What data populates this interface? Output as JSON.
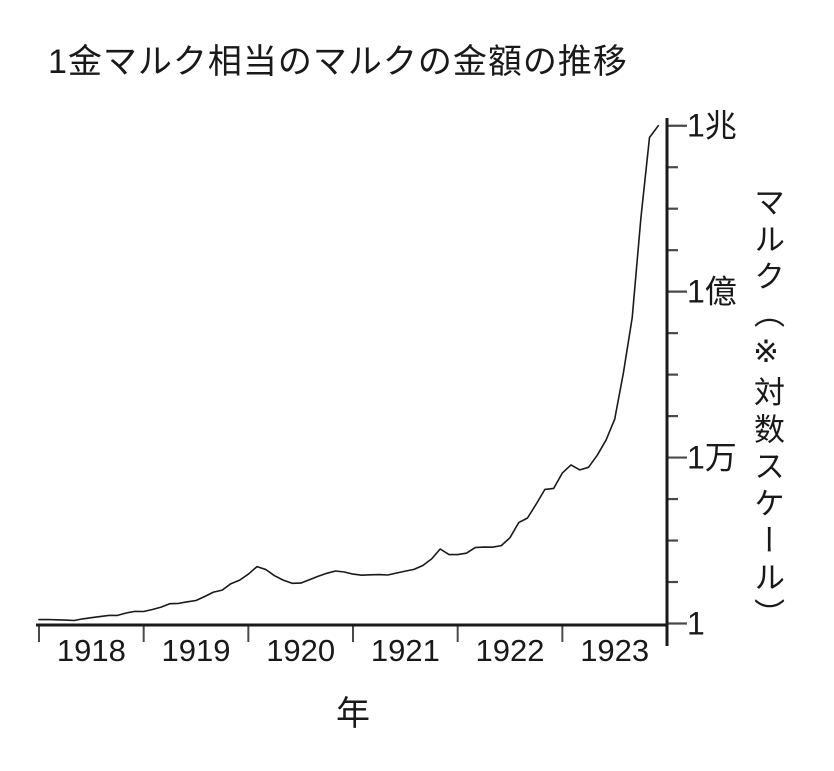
{
  "chart_data": {
    "type": "line",
    "title": "1金マルク相当のマルクの金額の推移",
    "xlabel": "年",
    "ylabel": "マルク（※対数スケール）",
    "y_scale": "log10",
    "y_range": [
      1,
      1000000000000
    ],
    "x_range": [
      1918,
      1924
    ],
    "grid": false,
    "legend": null,
    "x_tick_labels": [
      "1918",
      "1919",
      "1920",
      "1921",
      "1922",
      "1923"
    ],
    "y_tick_labels": [
      {
        "value": 1,
        "label": "1"
      },
      {
        "value": 10000,
        "label": "1万"
      },
      {
        "value": 100000000,
        "label": "1億"
      },
      {
        "value": 1000000000000,
        "label": "1兆"
      }
    ],
    "y_minor_ticks_every_decade": true,
    "series": [
      {
        "x": [
          1918.0,
          1918.083,
          1918.167,
          1918.25,
          1918.333,
          1918.417,
          1918.5,
          1918.583,
          1918.667,
          1918.75,
          1918.833,
          1918.917,
          1919.0,
          1919.083,
          1919.167,
          1919.25,
          1919.333,
          1919.417,
          1919.5,
          1919.583,
          1919.667,
          1919.75,
          1919.833,
          1919.917,
          1920.0,
          1920.083,
          1920.167,
          1920.25,
          1920.333,
          1920.417,
          1920.5,
          1920.583,
          1920.667,
          1920.75,
          1920.833,
          1920.917,
          1921.0,
          1921.083,
          1921.167,
          1921.25,
          1921.333,
          1921.417,
          1921.5,
          1921.583,
          1921.667,
          1921.75,
          1921.833,
          1921.917,
          1922.0,
          1922.083,
          1922.167,
          1922.25,
          1922.333,
          1922.417,
          1922.5,
          1922.583,
          1922.667,
          1922.75,
          1922.833,
          1922.917,
          1923.0,
          1923.083,
          1923.167,
          1923.25,
          1923.333,
          1923.417,
          1923.5,
          1923.583,
          1923.667,
          1923.75,
          1923.833,
          1923.917
        ],
        "values": [
          1.24,
          1.25,
          1.23,
          1.21,
          1.18,
          1.29,
          1.38,
          1.47,
          1.57,
          1.57,
          1.79,
          1.96,
          1.95,
          2.17,
          2.48,
          3.0,
          3.06,
          3.34,
          3.59,
          4.48,
          5.73,
          6.39,
          9.12,
          11.14,
          15.4,
          23.6,
          20.0,
          14.2,
          11.1,
          9.3,
          9.4,
          11.4,
          13.8,
          16.2,
          18.4,
          17.4,
          15.5,
          14.6,
          14.9,
          15.1,
          14.8,
          16.5,
          18.3,
          20.1,
          25.0,
          35.8,
          62.6,
          45.7,
          45.7,
          49.5,
          67.7,
          69.3,
          69.1,
          75.6,
          117,
          270,
          349,
          758,
          1711,
          1808,
          4279,
          6650,
          5048,
          5826,
          11355,
          26202,
          84186,
          1100130,
          23540000,
          6015000000,
          522000000000,
          1000000000000
        ]
      }
    ]
  },
  "colors": {
    "background": "#ffffff",
    "text": "#191919",
    "axis": "#1a1a1a",
    "tick": "#4a4a4a",
    "line": "#1a1a1a"
  }
}
